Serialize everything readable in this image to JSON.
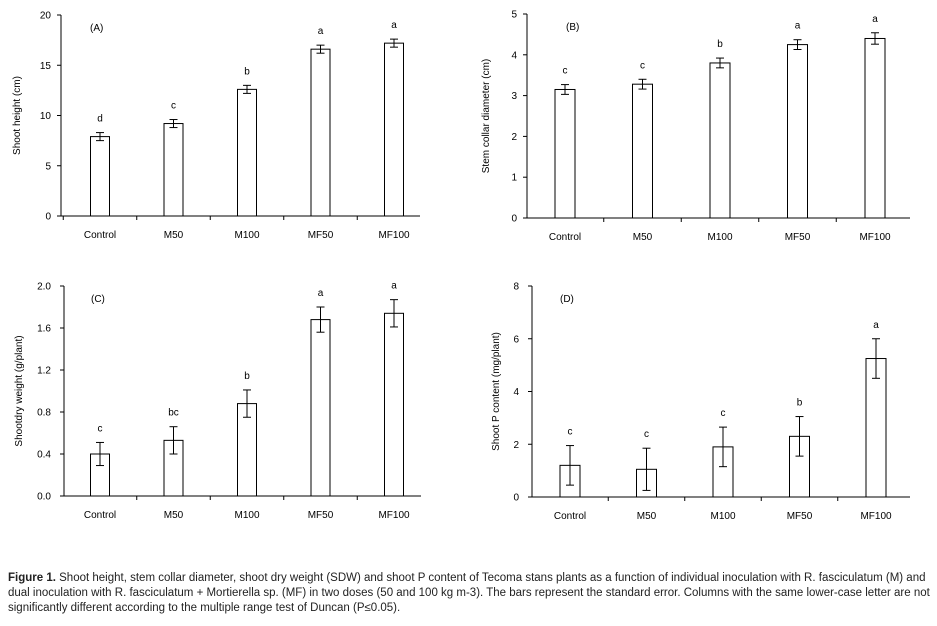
{
  "chart_data": [
    {
      "type": "bar",
      "panel_label": "(A)",
      "ylabel": "Shoot height (cm)",
      "categories": [
        "Control",
        "M50",
        "M100",
        "MF50",
        "MF100"
      ],
      "values": [
        7.9,
        9.2,
        12.6,
        16.6,
        17.2
      ],
      "errors": [
        0.4,
        0.4,
        0.4,
        0.4,
        0.4
      ],
      "letters": [
        "d",
        "c",
        "b",
        "a",
        "a"
      ],
      "ylim": [
        0,
        20
      ],
      "yticks": [
        "0",
        "5",
        "10",
        "15",
        "20"
      ],
      "yticks_values": [
        0,
        5,
        10,
        15,
        20
      ]
    },
    {
      "type": "bar",
      "panel_label": "(B)",
      "ylabel": "Stem collar diameter (cm)",
      "categories": [
        "Control",
        "M50",
        "M100",
        "MF50",
        "MF100"
      ],
      "values": [
        3.15,
        3.28,
        3.8,
        4.25,
        4.4
      ],
      "errors": [
        0.12,
        0.12,
        0.12,
        0.12,
        0.14
      ],
      "letters": [
        "c",
        "c",
        "b",
        "a",
        "a"
      ],
      "ylim": [
        0,
        5
      ],
      "yticks": [
        "0",
        "1",
        "2",
        "3",
        "4",
        "5"
      ],
      "yticks_values": [
        0,
        1,
        2,
        3,
        4,
        5
      ]
    },
    {
      "type": "bar",
      "panel_label": "(C)",
      "ylabel": "Shootdry weight  (g/plant)",
      "categories": [
        "Control",
        "M50",
        "M100",
        "MF50",
        "MF100"
      ],
      "values": [
        0.4,
        0.53,
        0.88,
        1.68,
        1.74
      ],
      "errors": [
        0.11,
        0.13,
        0.13,
        0.12,
        0.13
      ],
      "letters": [
        "c",
        "bc",
        "b",
        "a",
        "a"
      ],
      "ylim": [
        0,
        2
      ],
      "yticks": [
        "0.0",
        "0.4",
        "0.8",
        "1.2",
        "1.6",
        "2.0"
      ],
      "yticks_values": [
        0,
        0.4,
        0.8,
        1.2,
        1.6,
        2.0
      ]
    },
    {
      "type": "bar",
      "panel_label": "(D)",
      "ylabel": "Shoot P content  (mg/plant)",
      "categories": [
        "Control",
        "M50",
        "M100",
        "MF50",
        "MF100"
      ],
      "values": [
        1.2,
        1.05,
        1.9,
        2.3,
        5.25
      ],
      "errors": [
        0.75,
        0.8,
        0.75,
        0.75,
        0.75
      ],
      "letters": [
        "c",
        "c",
        "c",
        "b",
        "a"
      ],
      "ylim": [
        0,
        8
      ],
      "yticks": [
        "0",
        "2",
        "4",
        "6",
        "8"
      ],
      "yticks_values": [
        0,
        2,
        4,
        6,
        8
      ]
    }
  ],
  "caption": {
    "label": "Figure 1.",
    "text": " Shoot height, stem collar diameter, shoot dry weight (SDW) and shoot P content of Tecoma stans plants as a function of individual inoculation with R. fasciculatum (M) and dual inoculation with R. fasciculatum + Mortierella sp. (MF) in two doses (50 and 100 kg m-3). The bars represent the standard error. Columns with the same lower-case letter are not significantly different according to the multiple range test of Duncan (P≤0.05)."
  }
}
